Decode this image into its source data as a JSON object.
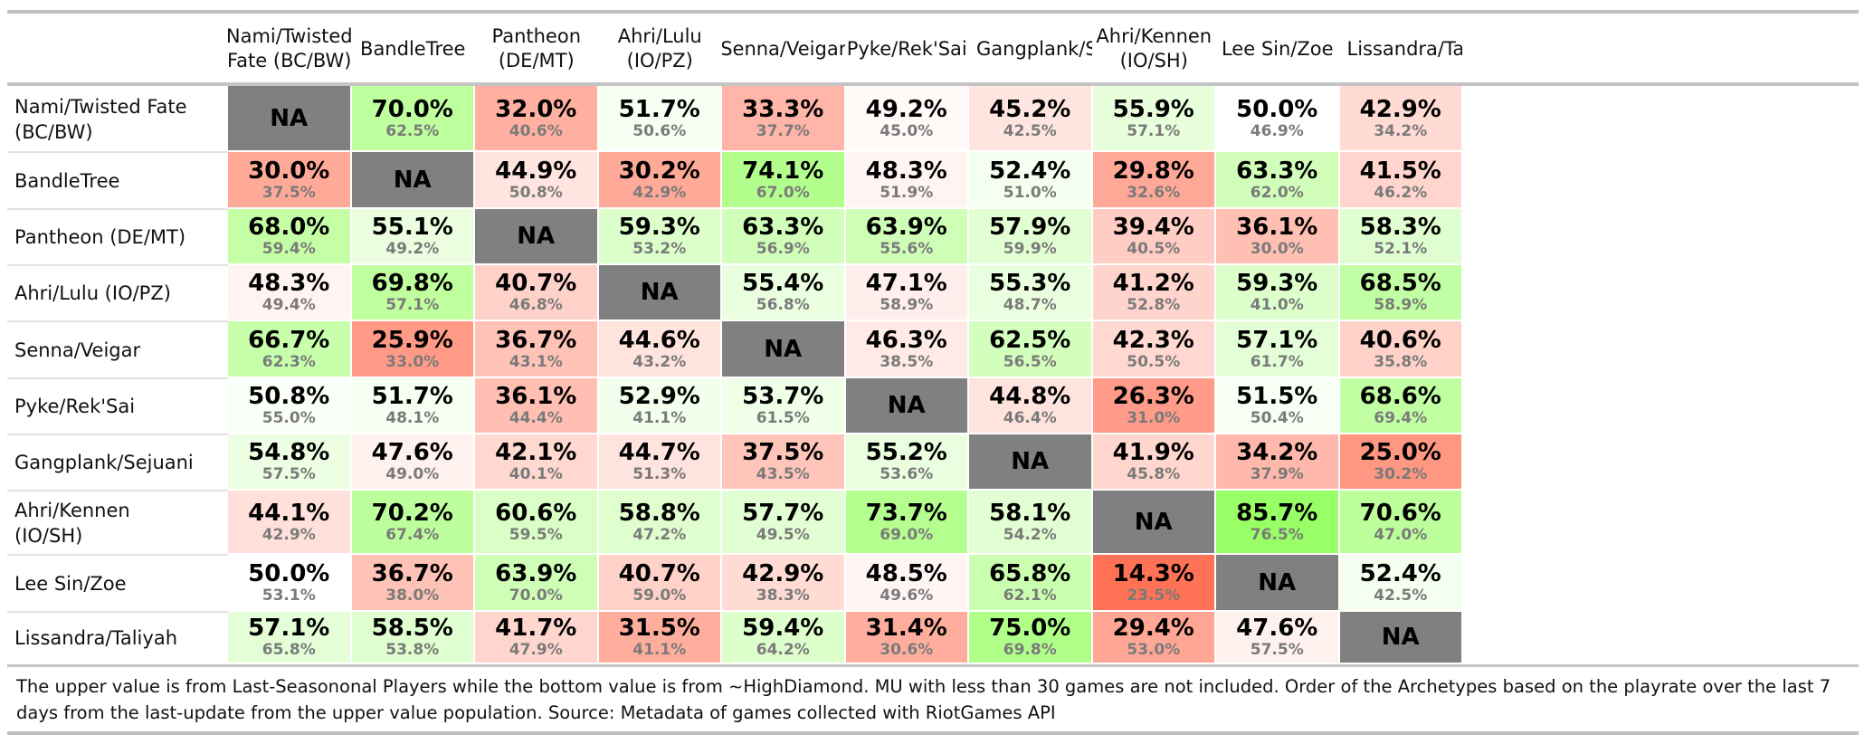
{
  "chart_data": {
    "type": "heatmap",
    "columns": [
      "Nami/Twisted\nFate (BC/BW)",
      "BandleTree",
      "Pantheon\n(DE/MT)",
      "Ahri/Lulu\n(IO/PZ)",
      "Senna/Veigar",
      "Pyke/Rek'Sai",
      "Gangplank/Sejuani",
      "Ahri/Kennen\n(IO/SH)",
      "Lee Sin/Zoe",
      "Lissandra/Taliyah"
    ],
    "rows": [
      "Nami/Twisted Fate\n(BC/BW)",
      "BandleTree",
      "Pantheon (DE/MT)",
      "Ahri/Lulu (IO/PZ)",
      "Senna/Veigar",
      "Pyke/Rek'Sai",
      "Gangplank/Sejuani",
      "Ahri/Kennen\n(IO/SH)",
      "Lee Sin/Zoe",
      "Lissandra/Taliyah"
    ],
    "na_label": "NA",
    "upper": [
      [
        null,
        "70.0%",
        "32.0%",
        "51.7%",
        "33.3%",
        "49.2%",
        "45.2%",
        "55.9%",
        "50.0%",
        "42.9%"
      ],
      [
        "30.0%",
        null,
        "44.9%",
        "30.2%",
        "74.1%",
        "48.3%",
        "52.4%",
        "29.8%",
        "63.3%",
        "41.5%"
      ],
      [
        "68.0%",
        "55.1%",
        null,
        "59.3%",
        "63.3%",
        "63.9%",
        "57.9%",
        "39.4%",
        "36.1%",
        "58.3%"
      ],
      [
        "48.3%",
        "69.8%",
        "40.7%",
        null,
        "55.4%",
        "47.1%",
        "55.3%",
        "41.2%",
        "59.3%",
        "68.5%"
      ],
      [
        "66.7%",
        "25.9%",
        "36.7%",
        "44.6%",
        null,
        "46.3%",
        "62.5%",
        "42.3%",
        "57.1%",
        "40.6%"
      ],
      [
        "50.8%",
        "51.7%",
        "36.1%",
        "52.9%",
        "53.7%",
        null,
        "44.8%",
        "26.3%",
        "51.5%",
        "68.6%"
      ],
      [
        "54.8%",
        "47.6%",
        "42.1%",
        "44.7%",
        "37.5%",
        "55.2%",
        null,
        "41.9%",
        "34.2%",
        "25.0%"
      ],
      [
        "44.1%",
        "70.2%",
        "60.6%",
        "58.8%",
        "57.7%",
        "73.7%",
        "58.1%",
        null,
        "85.7%",
        "70.6%"
      ],
      [
        "50.0%",
        "36.7%",
        "63.9%",
        "40.7%",
        "42.9%",
        "48.5%",
        "65.8%",
        "14.3%",
        null,
        "52.4%"
      ],
      [
        "57.1%",
        "58.5%",
        "41.7%",
        "31.5%",
        "59.4%",
        "31.4%",
        "75.0%",
        "29.4%",
        "47.6%",
        null
      ]
    ],
    "lower": [
      [
        null,
        "62.5%",
        "40.6%",
        "50.6%",
        "37.7%",
        "45.0%",
        "42.5%",
        "57.1%",
        "46.9%",
        "34.2%"
      ],
      [
        "37.5%",
        null,
        "50.8%",
        "42.9%",
        "67.0%",
        "51.9%",
        "51.0%",
        "32.6%",
        "62.0%",
        "46.2%"
      ],
      [
        "59.4%",
        "49.2%",
        null,
        "53.2%",
        "56.9%",
        "55.6%",
        "59.9%",
        "40.5%",
        "30.0%",
        "52.1%"
      ],
      [
        "49.4%",
        "57.1%",
        "46.8%",
        null,
        "56.8%",
        "58.9%",
        "48.7%",
        "52.8%",
        "41.0%",
        "58.9%"
      ],
      [
        "62.3%",
        "33.0%",
        "43.1%",
        "43.2%",
        null,
        "38.5%",
        "56.5%",
        "50.5%",
        "61.7%",
        "35.8%"
      ],
      [
        "55.0%",
        "48.1%",
        "44.4%",
        "41.1%",
        "61.5%",
        null,
        "46.4%",
        "31.0%",
        "50.4%",
        "69.4%"
      ],
      [
        "57.5%",
        "49.0%",
        "40.1%",
        "51.3%",
        "43.5%",
        "53.6%",
        null,
        "45.8%",
        "37.9%",
        "30.2%"
      ],
      [
        "42.9%",
        "67.4%",
        "59.5%",
        "47.2%",
        "49.5%",
        "69.0%",
        "54.2%",
        null,
        "76.5%",
        "47.0%"
      ],
      [
        "53.1%",
        "38.0%",
        "70.0%",
        "59.0%",
        "38.3%",
        "49.6%",
        "62.1%",
        "23.5%",
        null,
        "42.5%"
      ],
      [
        "65.8%",
        "53.8%",
        "47.9%",
        "41.1%",
        "64.2%",
        "30.6%",
        "69.8%",
        "53.0%",
        "57.5%",
        null
      ]
    ],
    "color_scale": {
      "low": "#ff6a4d",
      "mid": "#ffffff",
      "high": "#99ff66",
      "na": "#808080"
    }
  },
  "footnote": "The upper value is from Last-Seasononal Players while the bottom value is from ~HighDiamond. MU with less than 30 games are not included. Order of the Archetypes based on the playrate over the last 7 days from the last-update from the upper value population. Source: Metadata of games collected with RiotGames API"
}
